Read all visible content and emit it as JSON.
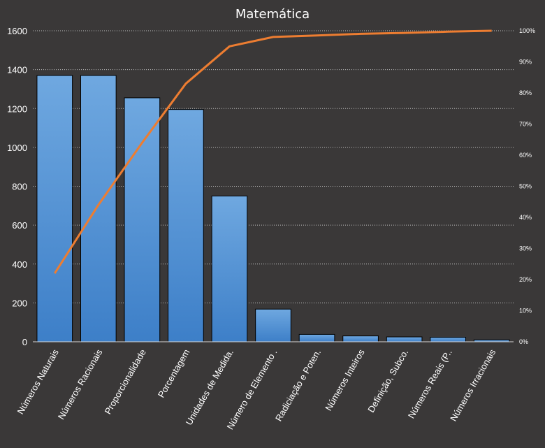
{
  "chart_data": {
    "type": "bar",
    "title": "Matemática",
    "categories": [
      "Números Naturais",
      "Números Racionais",
      "Proporcionalidade",
      "Porcentagem",
      "Unidades de Medida.",
      "Número de Elemento .",
      "Radiciação e Poten.",
      "Números Inteiros",
      "Definição, Subco.",
      "Números Reais (P..",
      "Números Irracionais"
    ],
    "series": [
      {
        "type": "bar",
        "axis": "left",
        "values": [
          1370,
          1370,
          1255,
          1195,
          750,
          168,
          38,
          30,
          25,
          23,
          10
        ]
      },
      {
        "type": "line",
        "axis": "right",
        "values": [
          0.22,
          0.44,
          0.64,
          0.83,
          0.95,
          0.98,
          0.985,
          0.99,
          0.993,
          0.997,
          1.0
        ]
      }
    ],
    "ylim": [
      0,
      1600
    ],
    "yticks": [
      "0",
      "200",
      "400",
      "600",
      "800",
      "1000",
      "1200",
      "1400",
      "1600"
    ],
    "y2lim": [
      0,
      1
    ],
    "y2ticks": [
      "0%",
      "10%",
      "20%",
      "30%",
      "40%",
      "50%",
      "60%",
      "70%",
      "80%",
      "90%",
      "100%"
    ],
    "grid": true,
    "legend": "none",
    "colors": {
      "background": "#3a3838",
      "bar_top": "#6fa8e0",
      "bar_bottom": "#3d7fc8",
      "line": "#ed7d31",
      "text": "#ffffff",
      "grid": "#bfbfbf"
    }
  }
}
